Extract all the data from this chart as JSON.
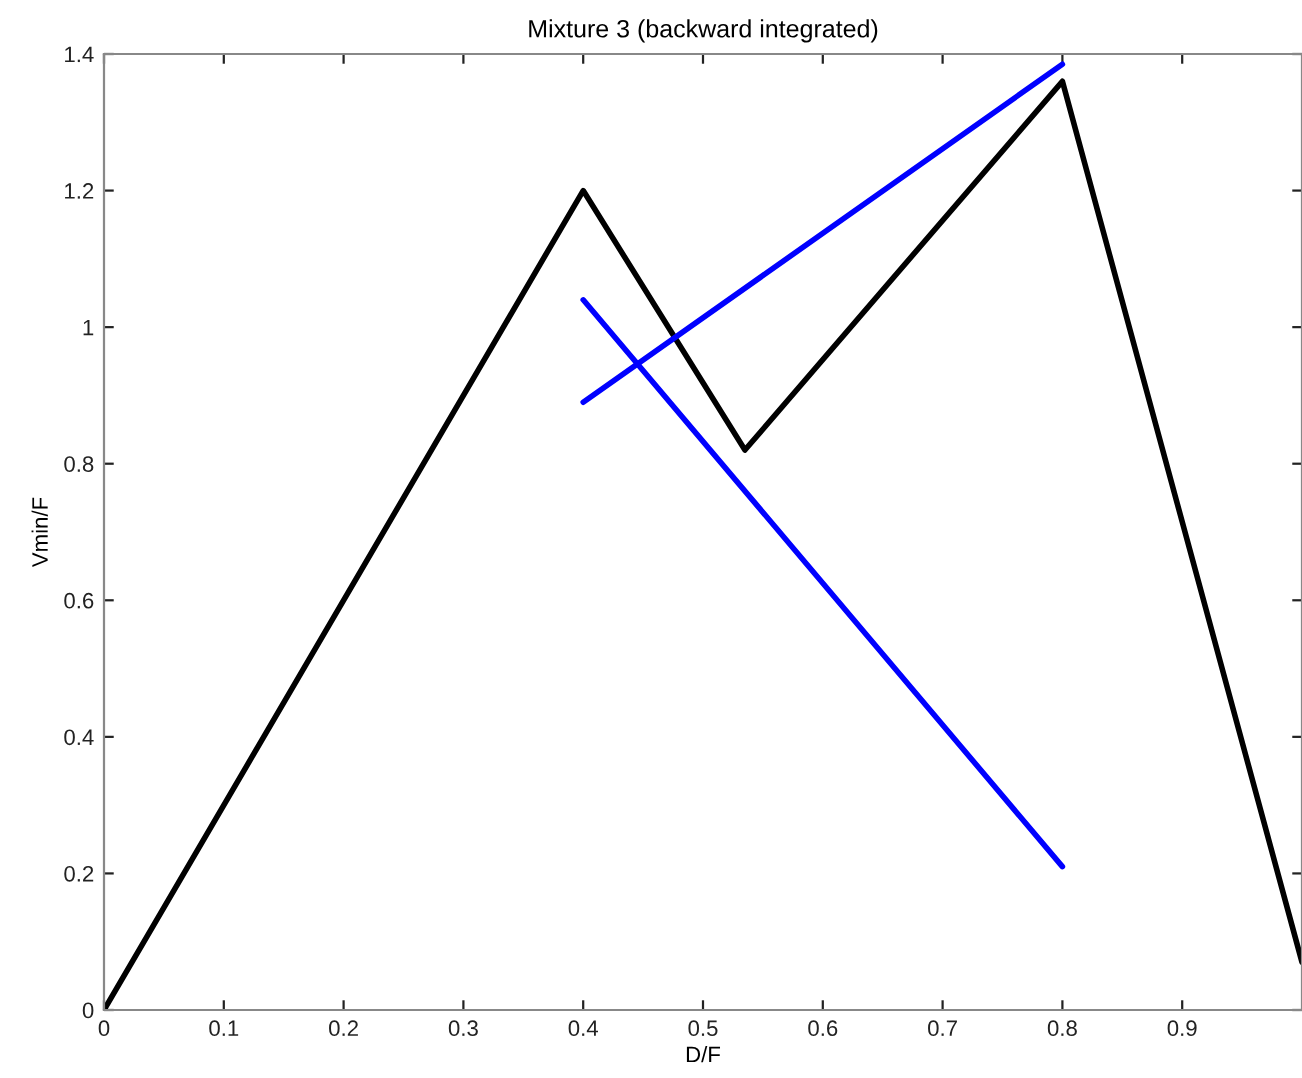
{
  "chart_data": {
    "type": "line",
    "title": "Mixture 3 (backward integrated)",
    "xlabel": "D/F",
    "ylabel": "Vmin/F",
    "xlim": [
      0,
      1
    ],
    "xticks": [
      0,
      0.1,
      0.2,
      0.3,
      0.4,
      0.5,
      0.6,
      0.7,
      0.8,
      0.9
    ],
    "ylim": [
      0,
      1.4
    ],
    "yticks": [
      0,
      0.2,
      0.4,
      0.6,
      0.8,
      1,
      1.2,
      1.4
    ],
    "grid": false,
    "legend": false,
    "series": [
      {
        "color": "#000000",
        "x": [
          0,
          0.4,
          0.535,
          0.8,
          1.0
        ],
        "values": [
          0,
          1.2,
          0.82,
          1.36,
          0.07
        ]
      },
      {
        "color": "#0000ff",
        "x": [
          0.4,
          0.8
        ],
        "values": [
          0.89,
          1.385
        ]
      },
      {
        "color": "#0000ff",
        "x": [
          0.4,
          0.8
        ],
        "values": [
          1.04,
          0.21
        ]
      }
    ]
  }
}
